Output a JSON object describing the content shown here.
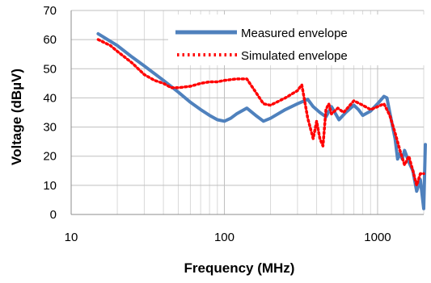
{
  "chart_data": {
    "type": "line",
    "xlabel": "Frequency (MHz)",
    "ylabel": "Voltage (dBµV)",
    "x_scale": "log",
    "xlim": [
      10,
      2000
    ],
    "ylim": [
      0,
      70
    ],
    "x_ticks": [
      10,
      100,
      1000
    ],
    "x_tick_labels": [
      "10",
      "100",
      "1000"
    ],
    "y_ticks": [
      0,
      10,
      20,
      30,
      40,
      50,
      60,
      70
    ],
    "y_tick_labels": [
      "0",
      "10",
      "20",
      "30",
      "40",
      "50",
      "60",
      "70"
    ],
    "grid": true,
    "legend_position": "top-right",
    "colors": {
      "measured": "#4F81BD",
      "simulated": "#FF0000",
      "grid": "#d9d9d9",
      "axis": "#8c8c8c"
    },
    "series": [
      {
        "name": "Measured envelope",
        "style": "solid",
        "x": [
          15,
          20,
          25,
          30,
          40,
          50,
          60,
          70,
          80,
          90,
          100,
          110,
          120,
          140,
          160,
          180,
          200,
          250,
          300,
          350,
          380,
          420,
          460,
          500,
          560,
          620,
          700,
          750,
          800,
          900,
          1000,
          1100,
          1150,
          1200,
          1300,
          1350,
          1400,
          1450,
          1500,
          1600,
          1700,
          1800,
          1900,
          2000,
          2050
        ],
        "y": [
          62,
          58,
          54,
          51,
          46,
          42,
          38.5,
          36,
          34,
          32.5,
          32,
          33,
          34.5,
          36.5,
          34,
          32,
          33,
          36,
          38,
          39.5,
          37,
          35,
          33.5,
          37,
          32.5,
          35,
          37.5,
          36,
          34,
          35.5,
          38,
          40.5,
          40,
          35,
          26,
          19,
          21,
          19,
          22,
          18,
          15,
          8,
          12,
          2,
          24
        ]
      },
      {
        "name": "Simulated envelope",
        "style": "dotted",
        "x": [
          15,
          18,
          20,
          25,
          30,
          35,
          40,
          45,
          50,
          60,
          70,
          80,
          90,
          100,
          120,
          140,
          160,
          180,
          200,
          250,
          300,
          320,
          350,
          380,
          400,
          420,
          440,
          460,
          480,
          500,
          550,
          600,
          700,
          800,
          900,
          1000,
          1100,
          1200,
          1300,
          1400,
          1500,
          1600,
          1700,
          1800,
          1900,
          2000
        ],
        "y": [
          60,
          58,
          56,
          52,
          48,
          46,
          45,
          43.5,
          43.5,
          44,
          45,
          45.5,
          45.5,
          46,
          46.5,
          46.5,
          42,
          38,
          37.5,
          40,
          42.5,
          44.5,
          33,
          26,
          32,
          26,
          23.5,
          36,
          38,
          34.5,
          36.5,
          35,
          39,
          37.5,
          36,
          37,
          38,
          34,
          28,
          22,
          17,
          20,
          15,
          10,
          14,
          14
        ]
      }
    ]
  }
}
